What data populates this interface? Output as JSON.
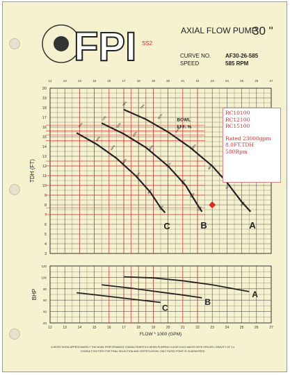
{
  "header": {
    "logo": "FPI",
    "tag": "SS2",
    "title": "AXIAL FLOW PUMP",
    "size": "30 \"",
    "curve_label": "CURVE NO.",
    "curve_value": "AF30-26-585",
    "speed_label": "SPEED",
    "speed_value": "585 RPM"
  },
  "note": {
    "lines": [
      "RC10100",
      "RC12100",
      "RC15100",
      "",
      "Rated 23000gpm",
      "8.0FT.TDH",
      "580Rpm"
    ]
  },
  "footer": {
    "line1": "CURVES SHOW APPROXIMATELY THE BOWL PERFORMANCE CHARACTERISTICS WHEN PUMPING CLEAR COLD WATER WITH SPECIFIC GRAVITY OF 1.0",
    "line2": "CONSULT FACTORY FOR FINAL SELECTION AND CERTIFICATION. ONLY RATED POINT IS GUARANTEED"
  },
  "colors": {
    "paper": "#f6f1cf",
    "curve": "#222222",
    "red": "#e02828",
    "grid": "#555555",
    "note_text": "#d03030"
  },
  "chart_data": [
    {
      "type": "line",
      "title": "",
      "xlabel": "FLOW * 1000 (GPM)",
      "ylabel": "TDH (FT)",
      "xlim": [
        12,
        27
      ],
      "ylim": [
        3,
        20
      ],
      "x_ticks_top": [
        "12",
        "13",
        "14",
        "15",
        "16",
        "17",
        "18",
        "19",
        "20",
        "21",
        "22",
        "23",
        "24",
        "25",
        "26",
        "27"
      ],
      "y_ticks": [
        "3",
        "4",
        "5",
        "6",
        "7",
        "8",
        "9",
        "10",
        "11",
        "12",
        "13",
        "14",
        "15",
        "16",
        "17",
        "18",
        "19",
        "20"
      ],
      "grid": true,
      "efficiency_label": "BOWL EFF. %",
      "series": [
        {
          "name": "A",
          "points": [
            [
              17.0,
              17.8
            ],
            [
              18.5,
              16.8
            ],
            [
              20.0,
              15.5
            ],
            [
              21.5,
              13.9
            ],
            [
              23.0,
              12.0
            ],
            [
              24.0,
              10.3
            ],
            [
              25.0,
              8.3
            ],
            [
              25.6,
              7.3
            ]
          ],
          "eff": [
            [
              17.0,
              18.1,
              "78%"
            ],
            [
              18.2,
              17.8,
              "79%"
            ],
            [
              19.4,
              16.8,
              "81%"
            ],
            [
              20.6,
              15.4,
              "84%"
            ],
            [
              21.7,
              13.7,
              "85%"
            ],
            [
              22.8,
              11.6,
              "86%"
            ],
            [
              24.0,
              9.6,
              "82%"
            ],
            [
              25.0,
              7.8,
              "78%"
            ]
          ]
        },
        {
          "name": "B",
          "points": [
            [
              15.5,
              16.4
            ],
            [
              17.0,
              15.3
            ],
            [
              18.5,
              13.9
            ],
            [
              20.0,
              12.0
            ],
            [
              21.2,
              10.0
            ],
            [
              22.0,
              8.0
            ],
            [
              22.3,
              7.3
            ]
          ],
          "eff": [
            [
              15.6,
              16.6,
              "72%"
            ],
            [
              16.6,
              15.9,
              "81%"
            ],
            [
              17.7,
              15.0,
              "82%"
            ],
            [
              18.8,
              13.6,
              "85%"
            ],
            [
              20.0,
              11.8,
              "85%"
            ],
            [
              21.0,
              10.1,
              "84%"
            ],
            [
              21.6,
              8.7,
              "81%"
            ],
            [
              22.1,
              7.3,
              "72%"
            ]
          ]
        },
        {
          "name": "C",
          "points": [
            [
              13.8,
              15.4
            ],
            [
              15.2,
              14.2
            ],
            [
              16.5,
              12.8
            ],
            [
              17.8,
              11.0
            ],
            [
              18.8,
              9.3
            ],
            [
              19.5,
              7.7
            ],
            [
              19.8,
              7.2
            ]
          ],
          "eff": [
            [
              14.0,
              15.9,
              "74%"
            ],
            [
              15.2,
              14.5,
              "80%"
            ],
            [
              16.2,
              13.6,
              "84%"
            ],
            [
              17.0,
              12.2,
              "86%"
            ],
            [
              17.9,
              10.8,
              "85%"
            ],
            [
              18.7,
              9.1,
              "80%"
            ],
            [
              19.5,
              7.4,
              "72%"
            ]
          ]
        }
      ],
      "rated_point": {
        "x": 23.0,
        "y": 8.0
      }
    },
    {
      "type": "line",
      "xlabel": "FLOW * 1000 (GPM)",
      "ylabel": "BHP",
      "xlim": [
        12,
        27
      ],
      "ylim": [
        20,
        120
      ],
      "x_ticks": [
        "12",
        "13",
        "14",
        "15",
        "16",
        "17",
        "18",
        "19",
        "20",
        "21",
        "22",
        "23",
        "24",
        "25",
        "26",
        "27"
      ],
      "y_ticks": [
        "20",
        "40",
        "60",
        "80",
        "100",
        "120"
      ],
      "grid": true,
      "series": [
        {
          "name": "A",
          "points": [
            [
              17.0,
              101
            ],
            [
              19.0,
              99
            ],
            [
              21.0,
              94
            ],
            [
              23.0,
              87
            ],
            [
              25.5,
              75
            ]
          ]
        },
        {
          "name": "B",
          "points": [
            [
              15.5,
              87
            ],
            [
              17.5,
              81
            ],
            [
              19.5,
              74
            ],
            [
              21.0,
              69
            ],
            [
              22.3,
              64
            ]
          ]
        },
        {
          "name": "C",
          "points": [
            [
              13.8,
              73
            ],
            [
              15.5,
              68
            ],
            [
              17.5,
              62
            ],
            [
              19.5,
              56
            ]
          ]
        }
      ]
    }
  ]
}
